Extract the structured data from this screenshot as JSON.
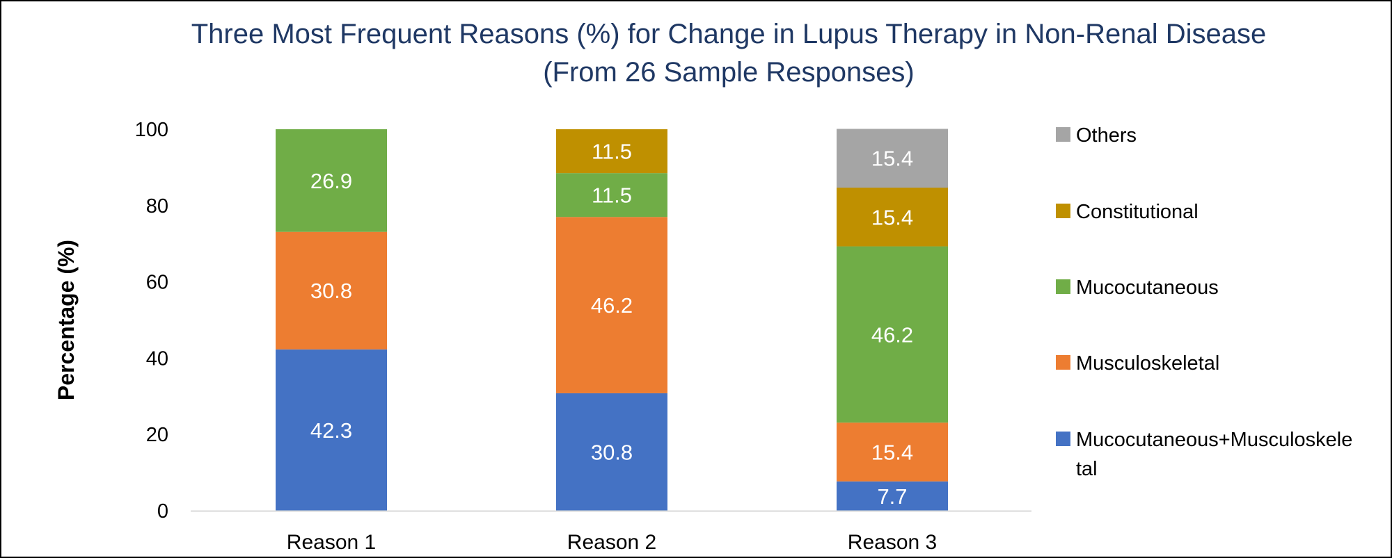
{
  "chart_data": {
    "type": "bar",
    "stacked": true,
    "title_lines": [
      "Three Most Frequent Reasons (%) for Change in Lupus Therapy in Non-Renal Disease",
      "(From 26 Sample Responses)"
    ],
    "xlabel": "",
    "ylabel": "Percentage (%)",
    "ylim": [
      0,
      100
    ],
    "yticks": [
      0,
      20,
      40,
      60,
      80,
      100
    ],
    "grid": false,
    "legend_position": "right",
    "categories": [
      "Reason 1",
      "Reason 2",
      "Reason 3"
    ],
    "series": [
      {
        "name": "Mucocutaneous+Musculoskeletal",
        "legend_lines": [
          "Mucocutaneous+Musculoskele",
          "tal"
        ],
        "color": "#4472c4",
        "values": [
          42.3,
          30.8,
          7.7
        ],
        "labels": [
          "42.3",
          "30.8",
          "7.7"
        ]
      },
      {
        "name": "Musculoskeletal",
        "legend_lines": [
          "Musculoskeletal"
        ],
        "color": "#ed7d31",
        "values": [
          30.8,
          46.2,
          15.4
        ],
        "labels": [
          "30.8",
          "46.2",
          "15.4"
        ]
      },
      {
        "name": "Mucocutaneous",
        "legend_lines": [
          "Mucocutaneous"
        ],
        "color": "#70ad47",
        "values": [
          26.9,
          11.5,
          46.2
        ],
        "labels": [
          "26.9",
          "11.5",
          "46.2"
        ]
      },
      {
        "name": "Constitutional",
        "legend_lines": [
          "Constitutional"
        ],
        "color": "#bf9000",
        "values": [
          0,
          11.5,
          15.4
        ],
        "labels": [
          "",
          "11.5",
          "15.4"
        ]
      },
      {
        "name": "Others",
        "legend_lines": [
          "Others"
        ],
        "color": "#a5a5a5",
        "values": [
          0,
          0,
          15.4
        ],
        "labels": [
          "",
          "",
          "15.4"
        ]
      }
    ]
  }
}
